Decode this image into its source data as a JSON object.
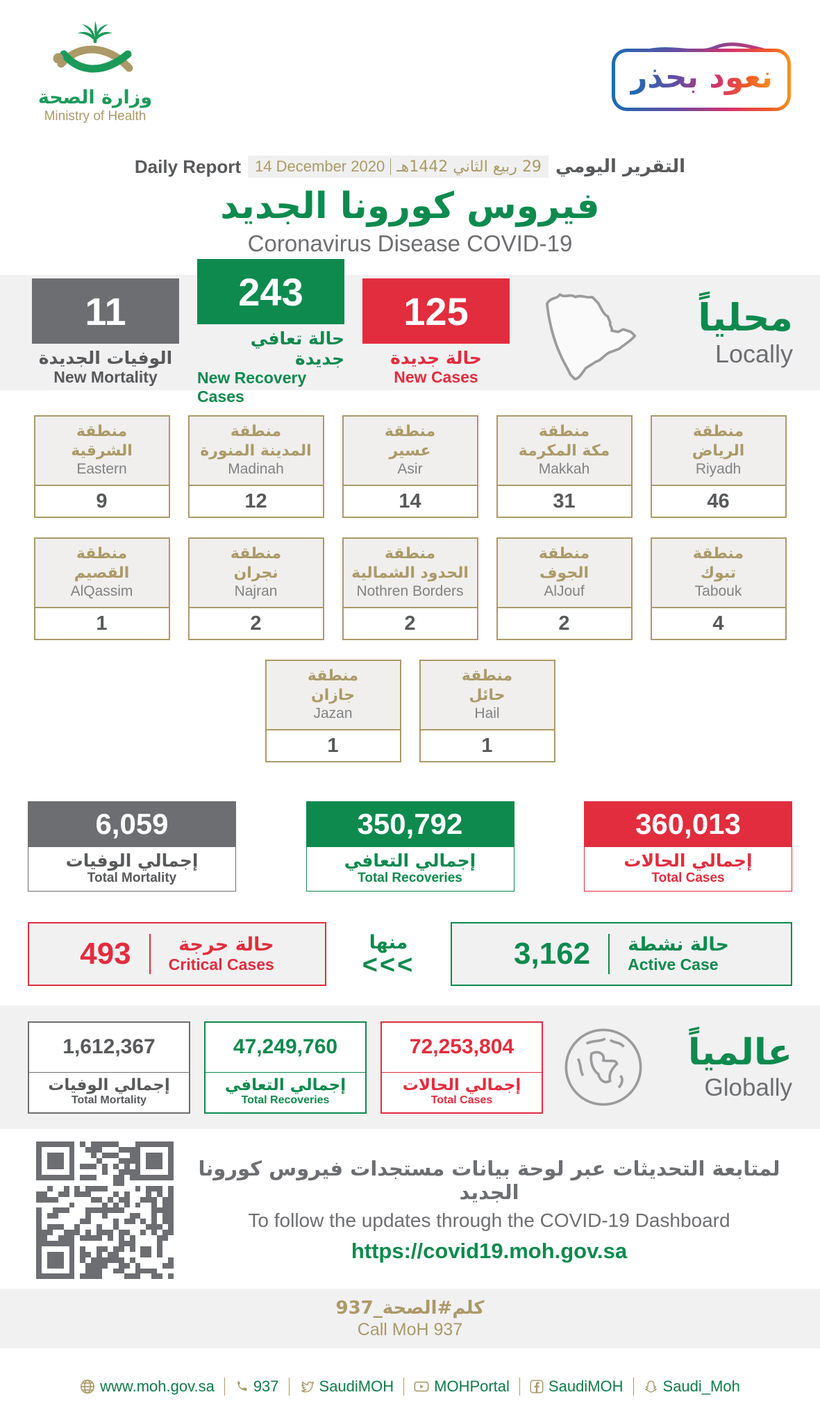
{
  "colors": {
    "green": "#0E8A4E",
    "red": "#E22D3E",
    "gray": "#6D6E71",
    "tan": "#AB9A68",
    "band_bg": "#F1F1F2",
    "badge_gradient": [
      "#F7941D",
      "#D5336B",
      "#1A6DB3"
    ]
  },
  "header": {
    "logo": {
      "arabic": "وزارة الصحة",
      "english": "Ministry of Health"
    },
    "badge": "نعود بحذر",
    "report_label_en": "Daily Report",
    "report_label_ar": "التقرير اليومي",
    "date_en": "14 December 2020",
    "date_hijri": "29 ربيع الثاني 1442هـ",
    "title_ar": "فيروس كورونا الجديد",
    "title_en": "Coronavirus Disease COVID-19"
  },
  "locally": {
    "label_ar": "محلياً",
    "label_en": "Locally",
    "new_mortality": {
      "value": "11",
      "label_ar": "الوفيات الجديدة",
      "label_en": "New Mortality"
    },
    "new_recovery": {
      "value": "243",
      "label_ar": "حالة تعافي جديدة",
      "label_en": "New Recovery Cases"
    },
    "new_cases": {
      "value": "125",
      "label_ar": "حالة جديدة",
      "label_en": "New Cases"
    }
  },
  "regions": {
    "prefix_ar": "منطقة",
    "rows": [
      [
        {
          "ar": "الشرقية",
          "en": "Eastern",
          "value": "9"
        },
        {
          "ar": "المدينة المنورة",
          "en": "Madinah",
          "value": "12"
        },
        {
          "ar": "عسير",
          "en": "Asir",
          "value": "14"
        },
        {
          "ar": "مكة المكرمة",
          "en": "Makkah",
          "value": "31"
        },
        {
          "ar": "الرياض",
          "en": "Riyadh",
          "value": "46"
        }
      ],
      [
        {
          "ar": "القصيم",
          "en": "AlQassim",
          "value": "1"
        },
        {
          "ar": "نجران",
          "en": "Najran",
          "value": "2"
        },
        {
          "ar": "الحدود الشمالية",
          "en": "Nothren Borders",
          "value": "2"
        },
        {
          "ar": "الجوف",
          "en": "AlJouf",
          "value": "2"
        },
        {
          "ar": "تبوك",
          "en": "Tabouk",
          "value": "4"
        }
      ],
      [
        {
          "ar": "جازان",
          "en": "Jazan",
          "value": "1"
        },
        {
          "ar": "حائل",
          "en": "Hail",
          "value": "1"
        }
      ]
    ]
  },
  "totals": {
    "mortality": {
      "value": "6,059",
      "label_ar": "إجمالي الوفيات",
      "label_en": "Total Mortality"
    },
    "recoveries": {
      "value": "350,792",
      "label_ar": "إجمالي التعافي",
      "label_en": "Total Recoveries"
    },
    "cases": {
      "value": "360,013",
      "label_ar": "إجمالي الحالات",
      "label_en": "Total Cases"
    }
  },
  "critical": {
    "value": "493",
    "label_ar": "حالة حرجة",
    "label_en": "Critical Cases"
  },
  "of_which": {
    "label_ar": "منها",
    "arrows": "<<<"
  },
  "active": {
    "value": "3,162",
    "label_ar": "حالة نشطة",
    "label_en": "Active Case"
  },
  "globally": {
    "label_ar": "عالمياً",
    "label_en": "Globally",
    "mortality": {
      "value": "1,612,367",
      "label_ar": "إجمالي الوفيات",
      "label_en": "Total Mortality"
    },
    "recoveries": {
      "value": "47,249,760",
      "label_ar": "إجمالي التعافي",
      "label_en": "Total Recoveries"
    },
    "cases": {
      "value": "72,253,804",
      "label_ar": "إجمالي الحالات",
      "label_en": "Total Cases"
    }
  },
  "dashboard": {
    "line_ar": "لمتابعة التحديثات عبر لوحة بيانات مستجدات فيروس كورونا الجديد",
    "line_en": "To follow the updates through the COVID-19 Dashboard",
    "url": "https://covid19.moh.gov.sa"
  },
  "call_moh": {
    "ar": "كلم#الصحة_937",
    "en": "Call MoH 937"
  },
  "footer": {
    "links": [
      {
        "icon": "globe-icon",
        "label": "www.moh.gov.sa"
      },
      {
        "icon": "phone-icon",
        "label": "937"
      },
      {
        "icon": "twitter-icon",
        "label": "SaudiMOH"
      },
      {
        "icon": "youtube-icon",
        "label": "MOHPortal"
      },
      {
        "icon": "facebook-icon",
        "label": "SaudiMOH"
      },
      {
        "icon": "snapchat-icon",
        "label": "Saudi_Moh"
      }
    ]
  }
}
